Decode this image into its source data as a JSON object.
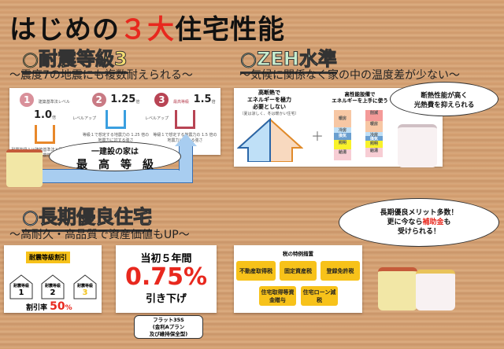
{
  "title": {
    "prefix": "はじめの",
    "highlight": "３大",
    "suffix": "住宅性能"
  },
  "section1": {
    "heading": "○耐震等級3",
    "subtitle": "～震度7の地震にも複数耐えられる～",
    "steps": [
      {
        "num": "1",
        "label": "建築基準法レベル",
        "mult": "1.0",
        "unit": "倍",
        "desc": "耐震等級１は建築基準法と同レベルの耐震性",
        "color": "#d9909a"
      },
      {
        "num": "2",
        "label": "",
        "mult": "1.25",
        "unit": "倍",
        "desc": "等級１で想定する地震力の 1.25 倍の地震力に対する強さ",
        "color": "#c97a84"
      },
      {
        "num": "3",
        "label": "最高等級",
        "mult": "1.5",
        "unit": "倍",
        "desc": "等級１で想定する地震力の 1.5 倍の地震力に対する強さ",
        "color": "#b84454"
      }
    ],
    "level_up": "レベルアップ",
    "bubble_line1": "一建設の家は",
    "bubble_line2": "最　高　等　級"
  },
  "section2": {
    "heading": "○ZEH水準",
    "subtitle": "～気候に関係なく家の中の温度差が少ない～",
    "left_text": [
      "高断熱で",
      "エネルギーを極力",
      "必要としない"
    ],
    "left_note": "（夏は涼しく、冬は暖かい住宅）",
    "right_text": [
      "高性能設備で",
      "エネルギーを上手に使う"
    ],
    "plus": "＋",
    "bar1": [
      "暖房",
      "冷房",
      "換気",
      "照明",
      "給湯"
    ],
    "bar2_arrow": "削減",
    "bar2": [
      "暖房",
      "冷房",
      "換気",
      "照明",
      "給湯"
    ],
    "bubble": [
      "断熱性能が高く",
      "光熱費を抑えられる"
    ]
  },
  "section3": {
    "heading": "○長期優良住宅",
    "subtitle": "～高耐久・高品質で資産価値もUP～",
    "discount_title": "耐震等級割引",
    "grade_label": "耐震等級",
    "grades": [
      "1",
      "2",
      "3"
    ],
    "rate_label": "割引率",
    "rate_value": "50",
    "rate_unit": "%",
    "rate_head": "当初５年間",
    "rate": "0.75%",
    "rate_foot": "引き下げ",
    "flat": [
      "フラット35S",
      "(金利Aプラン",
      "及び維持保全型)"
    ],
    "tax_title": "税の特例措置",
    "tax_items": [
      "不動産取得税",
      "固定資産税",
      "登録免許税",
      "住宅取得等資金贈与",
      "住宅ローン減税"
    ],
    "bubble1": "長期優良メリット多数！",
    "bubble2a": "更に今なら",
    "bubble2b": "補助金",
    "bubble2c": "も",
    "bubble3": "受けられる！"
  }
}
